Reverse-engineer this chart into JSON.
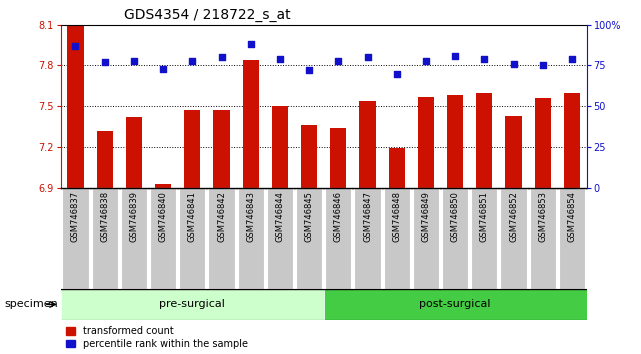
{
  "title": "GDS4354 / 218722_s_at",
  "categories": [
    "GSM746837",
    "GSM746838",
    "GSM746839",
    "GSM746840",
    "GSM746841",
    "GSM746842",
    "GSM746843",
    "GSM746844",
    "GSM746845",
    "GSM746846",
    "GSM746847",
    "GSM746848",
    "GSM746849",
    "GSM746850",
    "GSM746851",
    "GSM746852",
    "GSM746853",
    "GSM746854"
  ],
  "bar_values": [
    8.09,
    7.32,
    7.42,
    6.93,
    7.47,
    7.47,
    7.84,
    7.5,
    7.36,
    7.34,
    7.54,
    7.19,
    7.57,
    7.58,
    7.6,
    7.43,
    7.56,
    7.6
  ],
  "dot_values_pct": [
    87,
    77,
    78,
    73,
    78,
    80,
    88,
    79,
    72,
    78,
    80,
    70,
    78,
    81,
    79,
    76,
    75,
    79
  ],
  "bar_color": "#cc1100",
  "dot_color": "#1111cc",
  "ylim_left": [
    6.9,
    8.1
  ],
  "ylim_right": [
    0,
    100
  ],
  "yticks_left": [
    6.9,
    7.2,
    7.5,
    7.8,
    8.1
  ],
  "ytick_right_vals": [
    0,
    25,
    50,
    75,
    100
  ],
  "ytick_right_labels": [
    "0",
    "25",
    "50",
    "75",
    "100%"
  ],
  "hgrid_vals": [
    7.2,
    7.5,
    7.8
  ],
  "groups": [
    {
      "label": "pre-surgical",
      "start": 0,
      "end": 9,
      "color": "#ccffcc"
    },
    {
      "label": "post-surgical",
      "start": 9,
      "end": 18,
      "color": "#44cc44"
    }
  ],
  "specimen_label": "specimen",
  "legend_items": [
    {
      "label": "transformed count",
      "color": "#cc1100"
    },
    {
      "label": "percentile rank within the sample",
      "color": "#1111cc"
    }
  ],
  "bar_bottom": 6.9,
  "left_tick_color": "#cc1100",
  "right_tick_color": "#1111cc",
  "tick_label_bg": "#c8c8c8"
}
